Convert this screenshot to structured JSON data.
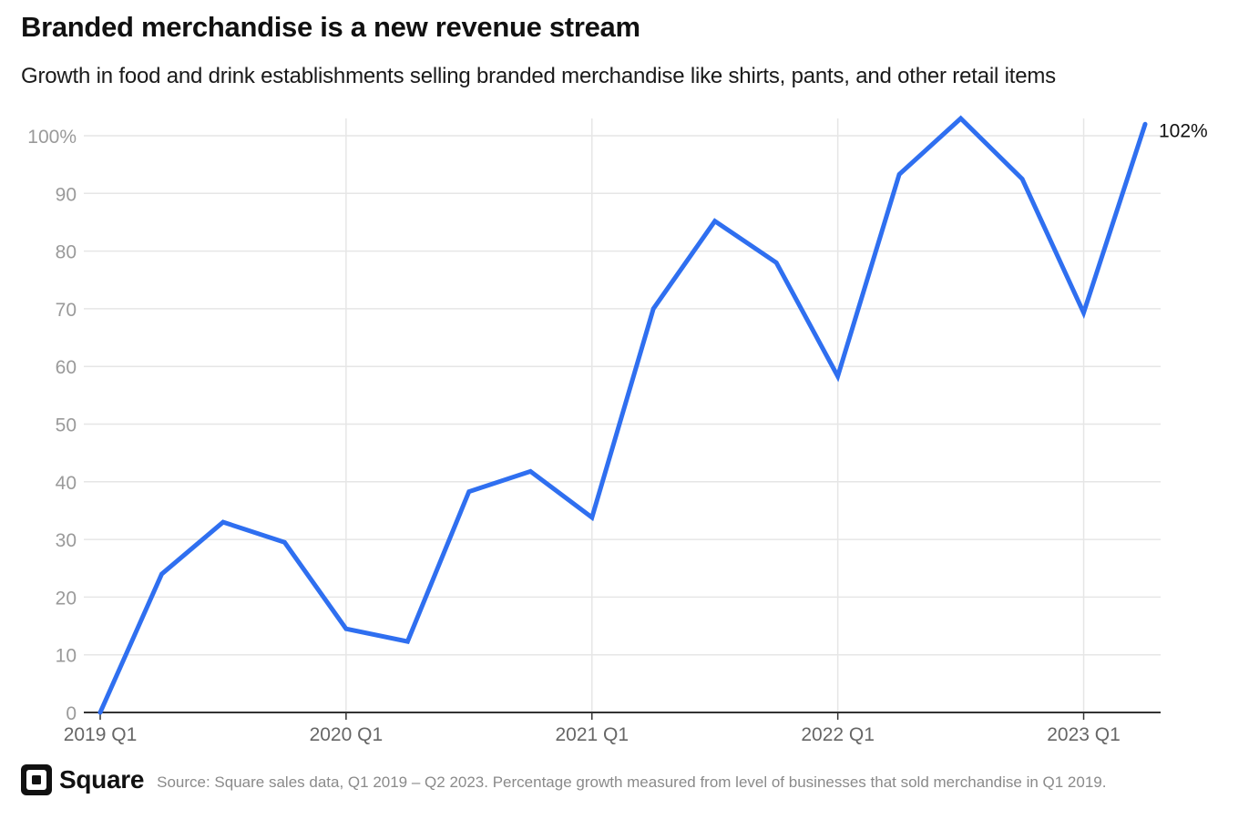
{
  "header": {
    "title": "Branded merchandise is a new revenue stream",
    "subtitle": "Growth in food and drink establishments selling branded merchandise like shirts, pants, and other retail items"
  },
  "footer": {
    "brand": "Square",
    "brand_icon": "square-logo-icon",
    "source": "Source: Square sales data, Q1 2019 – Q2 2023. Percentage growth measured from level of businesses that sold merchandise in Q1 2019."
  },
  "chart_data": {
    "type": "line",
    "title": "Branded merchandise is a new revenue stream",
    "subtitle": "Growth in food and drink establishments selling branded merchandise like shirts, pants, and other retail items",
    "xlabel": "",
    "ylabel": "",
    "x": [
      "2019 Q1",
      "2019 Q2",
      "2019 Q3",
      "2019 Q4",
      "2020 Q1",
      "2020 Q2",
      "2020 Q3",
      "2020 Q4",
      "2021 Q1",
      "2021 Q2",
      "2021 Q3",
      "2021 Q4",
      "2022 Q1",
      "2022 Q2",
      "2022 Q3",
      "2022 Q4",
      "2023 Q1",
      "2023 Q2"
    ],
    "x_tick_labels": [
      "2019 Q1",
      "2020 Q1",
      "2021 Q1",
      "2022 Q1",
      "2023 Q1"
    ],
    "series": [
      {
        "values": [
          0,
          24,
          33,
          29.5,
          14.5,
          12.3,
          38.3,
          41.8,
          33.8,
          70,
          85.2,
          78,
          58.3,
          93.3,
          103,
          92.5,
          69.3,
          102
        ]
      }
    ],
    "ylim": [
      0,
      100
    ],
    "y_ticks": [
      0,
      10,
      20,
      30,
      40,
      50,
      60,
      70,
      80,
      90,
      100
    ],
    "y_tick_labels": [
      "0",
      "10",
      "20",
      "30",
      "40",
      "50",
      "60",
      "70",
      "80",
      "90",
      "100%"
    ],
    "end_label": "102%",
    "grid": true,
    "colors": {
      "line": "#2f6ff0",
      "grid": "#e6e6e6",
      "tick_text": "#9a9a9a",
      "axis": "#333333"
    }
  }
}
